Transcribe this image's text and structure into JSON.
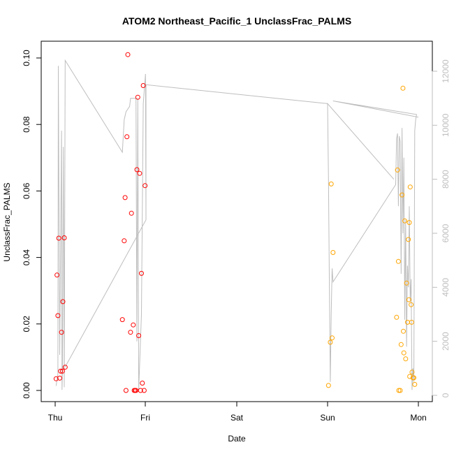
{
  "chart_data": {
    "type": "scatter",
    "title": "ATOM2 Northeast_Pacific_1 UnclassFrac_PALMS",
    "xlabel": "Date",
    "ylabel": "UnclassFrac_PALMS",
    "x_ticks": [
      "Thu",
      "Fri",
      "Sat",
      "Sun",
      "Mon"
    ],
    "x_unit": "days since Thu 00:00",
    "xlim": [
      0,
      4.1
    ],
    "ylim": [
      0,
      0.103
    ],
    "y_ticks": [
      "0.00",
      "0.02",
      "0.04",
      "0.06",
      "0.08",
      "0.10"
    ],
    "y_right_ticks": [
      "0",
      "2000",
      "4000",
      "6000",
      "8000",
      "10000",
      "12000"
    ],
    "y_right_lim": [
      -300,
      12500
    ],
    "colors": {
      "red": "#ff0000",
      "orange": "#ffa500",
      "line": "#bebebe"
    },
    "series": [
      {
        "color": "red",
        "points": [
          [
            0.01,
            0.0035
          ],
          [
            0.02,
            0.0347
          ],
          [
            0.03,
            0.0225
          ],
          [
            0.04,
            0.0458
          ],
          [
            0.05,
            0.0037
          ],
          [
            0.06,
            0.0058
          ],
          [
            0.07,
            0.0175
          ],
          [
            0.08,
            0.0058
          ],
          [
            0.085,
            0.0267
          ],
          [
            0.1,
            0.0459
          ],
          [
            0.11,
            0.007
          ],
          [
            0.74,
            0.0213
          ],
          [
            0.76,
            0.045
          ],
          [
            0.77,
            0.058
          ],
          [
            0.78,
            0.0
          ],
          [
            0.79,
            0.0763
          ],
          [
            0.8,
            0.101
          ],
          [
            0.83,
            0.0175
          ],
          [
            0.84,
            0.0533
          ],
          [
            0.86,
            0.0197
          ],
          [
            0.87,
            0.0
          ],
          [
            0.88,
            0.0
          ],
          [
            0.89,
            0.0
          ],
          [
            0.9,
            0.0664
          ],
          [
            0.91,
            0.0882
          ],
          [
            0.92,
            0.0165
          ],
          [
            0.93,
            0.0653
          ],
          [
            0.94,
            0.0
          ],
          [
            0.95,
            0.0352
          ],
          [
            0.96,
            0.0022
          ],
          [
            0.97,
            0.0917
          ],
          [
            0.98,
            0.0
          ],
          [
            0.99,
            0.0616
          ]
        ]
      },
      {
        "color": "orange",
        "points": [
          [
            3.01,
            0.0015
          ],
          [
            3.03,
            0.0145
          ],
          [
            3.04,
            0.0621
          ],
          [
            3.05,
            0.0158
          ],
          [
            3.06,
            0.0415
          ],
          [
            3.76,
            0.022
          ],
          [
            3.77,
            0.0663
          ],
          [
            3.78,
            0.0388
          ],
          [
            3.785,
            0.0
          ],
          [
            3.8,
            0.0
          ],
          [
            3.81,
            0.0138
          ],
          [
            3.82,
            0.0588
          ],
          [
            3.83,
            0.0909
          ],
          [
            3.835,
            0.0178
          ],
          [
            3.84,
            0.0113
          ],
          [
            3.85,
            0.051
          ],
          [
            3.86,
            0.0095
          ],
          [
            3.87,
            0.0323
          ],
          [
            3.88,
            0.0205
          ],
          [
            3.89,
            0.0454
          ],
          [
            3.895,
            0.0273
          ],
          [
            3.9,
            0.0505
          ],
          [
            3.905,
            0.0042
          ],
          [
            3.91,
            0.0612
          ],
          [
            3.92,
            0.0258
          ],
          [
            3.925,
            0.0205
          ],
          [
            3.93,
            0.0055
          ],
          [
            3.94,
            0.0038
          ],
          [
            3.95,
            0.0038
          ],
          [
            3.96,
            0.0018
          ]
        ]
      }
    ],
    "altitude_line": [
      [
        0.01,
        350
      ],
      [
        0.03,
        800
      ],
      [
        0.035,
        12200
      ],
      [
        0.05,
        1500
      ],
      [
        0.07,
        9800
      ],
      [
        0.075,
        200
      ],
      [
        0.08,
        900
      ],
      [
        0.09,
        9200
      ],
      [
        0.1,
        300
      ],
      [
        0.11,
        12400
      ],
      [
        0.74,
        9000
      ],
      [
        0.76,
        10200
      ],
      [
        0.78,
        10500
      ],
      [
        0.8,
        10600
      ],
      [
        0.82,
        10700
      ],
      [
        0.83,
        11000
      ],
      [
        0.86,
        11000
      ],
      [
        0.89,
        11000
      ],
      [
        0.9,
        2000
      ],
      [
        0.91,
        11000
      ],
      [
        0.92,
        200
      ],
      [
        0.95,
        3000
      ],
      [
        0.97,
        10800
      ],
      [
        0.99,
        11700
      ],
      [
        0.995,
        11900
      ],
      [
        1.0,
        6500
      ],
      [
        0.11,
        1050
      ],
      [
        1.0,
        6500
      ],
      [
        1.0,
        11500
      ],
      [
        3.0,
        10800
      ],
      [
        3.73,
        8000
      ],
      [
        3.0,
        10800
      ],
      [
        3.01,
        8000
      ],
      [
        3.02,
        4000
      ],
      [
        3.03,
        500
      ],
      [
        3.04,
        3000
      ],
      [
        3.05,
        4700
      ],
      [
        3.06,
        4200
      ],
      [
        3.75,
        7800
      ],
      [
        3.76,
        9500
      ],
      [
        3.77,
        9700
      ],
      [
        3.78,
        7000
      ],
      [
        3.79,
        9600
      ],
      [
        3.8,
        9400
      ],
      [
        3.81,
        4500
      ],
      [
        3.82,
        9900
      ],
      [
        3.83,
        6000
      ],
      [
        3.84,
        8800
      ],
      [
        3.85,
        2800
      ],
      [
        3.86,
        6500
      ],
      [
        3.87,
        1800
      ],
      [
        3.88,
        4800
      ],
      [
        3.89,
        4000
      ],
      [
        3.9,
        7000
      ],
      [
        3.91,
        3500
      ],
      [
        3.92,
        4300
      ],
      [
        3.93,
        200
      ],
      [
        3.94,
        1000
      ],
      [
        3.95,
        500
      ],
      [
        3.96,
        9800
      ],
      [
        3.97,
        10200
      ],
      [
        3.98,
        10400
      ],
      [
        3.06,
        10900
      ],
      [
        4.0,
        10300
      ]
    ]
  }
}
